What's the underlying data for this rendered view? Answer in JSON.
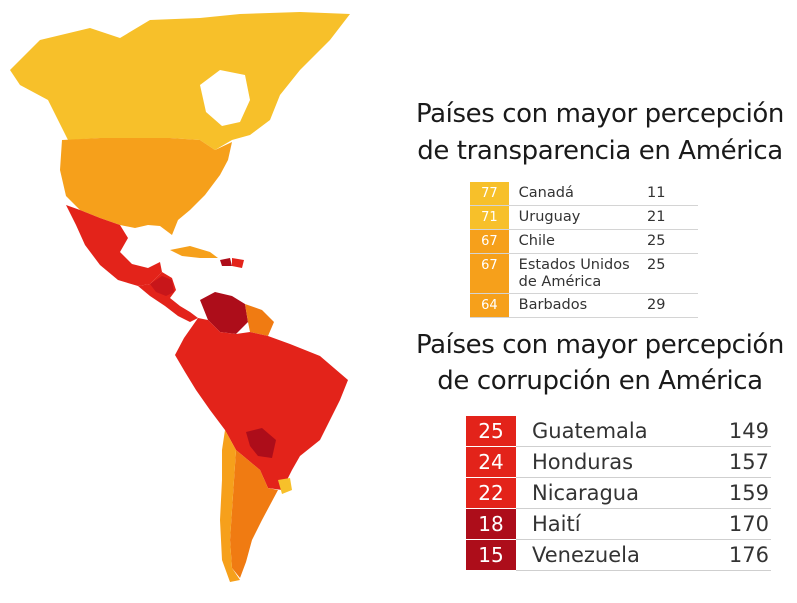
{
  "map": {
    "description_colors": {
      "highest": "#f7c02a",
      "high": "#f6a01b",
      "medium": "#f07b12",
      "low": "#e3231a",
      "lowest": "#ad0d1a"
    }
  },
  "transparency": {
    "title_line1": "Países con mayor percepción",
    "title_line2": "de transparencia en América",
    "rows": [
      {
        "score": "77",
        "country": "Canadá",
        "rank": "11",
        "color": "#f7c02a"
      },
      {
        "score": "71",
        "country": "Uruguay",
        "rank": "21",
        "color": "#f7c02a"
      },
      {
        "score": "67",
        "country": "Chile",
        "rank": "25",
        "color": "#f6a01b"
      },
      {
        "score": "67",
        "country": "Estados Unidos de América",
        "rank": "25",
        "color": "#f6a01b"
      },
      {
        "score": "64",
        "country": "Barbados",
        "rank": "29",
        "color": "#f6a01b"
      }
    ]
  },
  "corruption": {
    "title_line1": "Países con mayor percepción",
    "title_line2": "de corrupción en América",
    "rows": [
      {
        "score": "25",
        "country": "Guatemala",
        "rank": "149",
        "color": "#e3231a"
      },
      {
        "score": "24",
        "country": "Honduras",
        "rank": "157",
        "color": "#e3231a"
      },
      {
        "score": "22",
        "country": "Nicaragua",
        "rank": "159",
        "color": "#e3231a"
      },
      {
        "score": "18",
        "country": "Haití",
        "rank": "170",
        "color": "#ad0d1a"
      },
      {
        "score": "15",
        "country": "Venezuela",
        "rank": "176",
        "color": "#ad0d1a"
      }
    ]
  }
}
